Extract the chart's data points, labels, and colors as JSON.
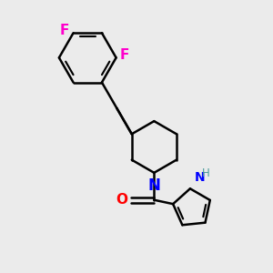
{
  "background_color": "#ebebeb",
  "bond_color": "#000000",
  "bond_width": 1.8,
  "N_color": "#0000ff",
  "O_color": "#ff0000",
  "F_color": "#ff00cc",
  "NH_color": "#4a9a9a",
  "label_fontsize": 10,
  "small_label_fontsize": 8.5,
  "fig_width": 3.0,
  "fig_height": 3.0,
  "dpi": 100,
  "xlim": [
    0.0,
    10.0
  ],
  "ylim": [
    0.0,
    10.0
  ]
}
